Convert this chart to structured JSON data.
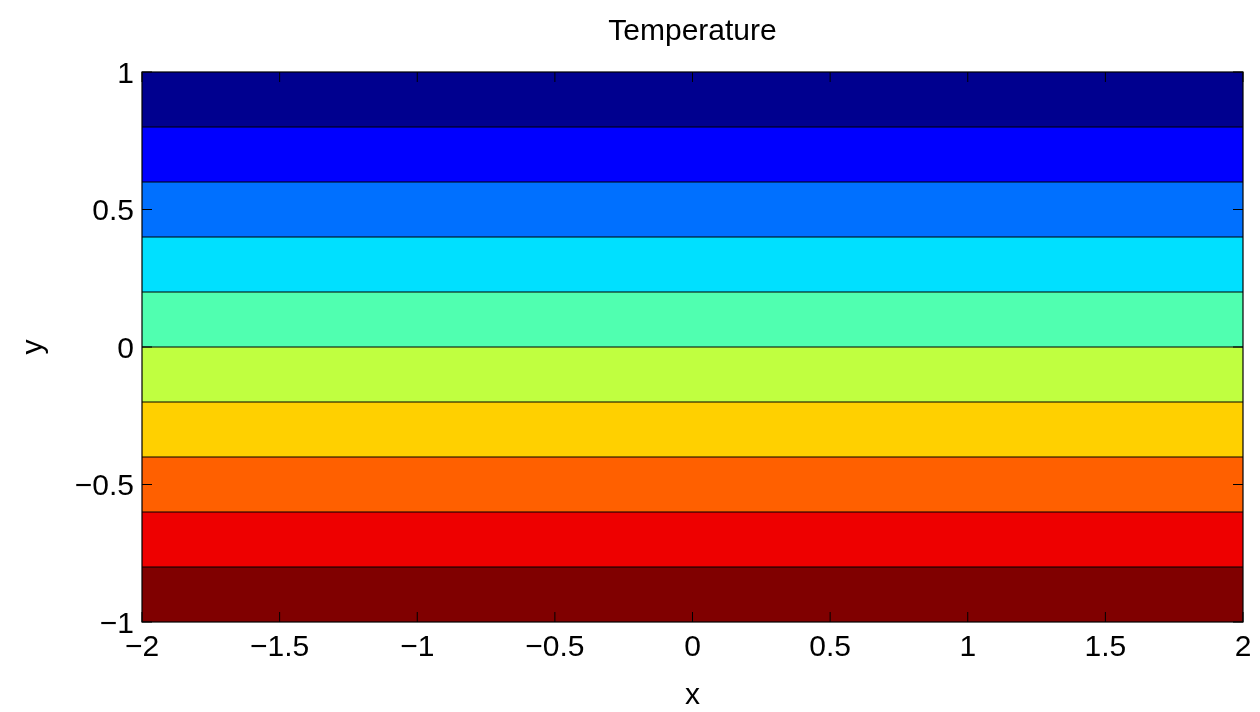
{
  "chart_data": {
    "type": "line",
    "title": "Temperature",
    "xlabel": "x",
    "ylabel": "y",
    "xlim": [
      -2,
      2
    ],
    "ylim": [
      -1,
      1
    ],
    "xticks": [
      {
        "value": -2,
        "label": "−2"
      },
      {
        "value": -1.5,
        "label": "−1.5"
      },
      {
        "value": -1,
        "label": "−1"
      },
      {
        "value": -0.5,
        "label": "−0.5"
      },
      0,
      0.5,
      1,
      1.5,
      2
    ],
    "yticks": [
      {
        "value": -1,
        "label": "−1"
      },
      {
        "value": -0.5,
        "label": "−0.5"
      },
      0,
      0.5,
      1
    ],
    "bands": [
      {
        "axis": "y",
        "from": -1,
        "to": -0.8,
        "color": "#800000"
      },
      {
        "axis": "y",
        "from": -0.8,
        "to": -0.6,
        "color": "#ee0000"
      },
      {
        "axis": "y",
        "from": -0.6,
        "to": -0.4,
        "color": "#ff6000"
      },
      {
        "axis": "y",
        "from": -0.4,
        "to": -0.2,
        "color": "#ffd000"
      },
      {
        "axis": "y",
        "from": -0.2,
        "to": 0,
        "color": "#c0ff40"
      },
      {
        "axis": "y",
        "from": 0,
        "to": 0.2,
        "color": "#50ffb0"
      },
      {
        "axis": "y",
        "from": 0.2,
        "to": 0.4,
        "color": "#00e0ff"
      },
      {
        "axis": "y",
        "from": 0.4,
        "to": 0.6,
        "color": "#0070ff"
      },
      {
        "axis": "y",
        "from": 0.6,
        "to": 0.8,
        "color": "#0000ff"
      },
      {
        "axis": "y",
        "from": 0.8,
        "to": 1,
        "color": "#00008f"
      }
    ],
    "ref_lines": [
      {
        "axis": "y",
        "value": -0.8,
        "color": "#000000"
      },
      {
        "axis": "y",
        "value": -0.6,
        "color": "#000000"
      },
      {
        "axis": "y",
        "value": -0.4,
        "color": "#000000"
      },
      {
        "axis": "y",
        "value": -0.2,
        "color": "#000000"
      },
      {
        "axis": "y",
        "value": 0,
        "color": "#000000"
      },
      {
        "axis": "y",
        "value": 0.2,
        "color": "#000000"
      },
      {
        "axis": "y",
        "value": 0.4,
        "color": "#000000"
      },
      {
        "axis": "y",
        "value": 0.6,
        "color": "#000000"
      },
      {
        "axis": "y",
        "value": 0.8,
        "color": "#000000"
      }
    ]
  }
}
